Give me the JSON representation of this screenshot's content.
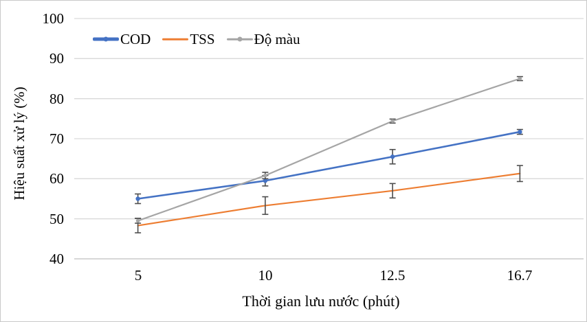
{
  "figure": {
    "background": "#ffffff",
    "border_color": "#c8c8c8"
  },
  "chart_data": {
    "type": "line",
    "title": "",
    "xlabel": "Thời gian lưu nước (phút)",
    "ylabel": "Hiệu suất xử lý (%)",
    "categories": [
      "5",
      "10",
      "12.5",
      "16.7"
    ],
    "ylim": [
      40,
      100
    ],
    "ytick_step": 10,
    "yticks": [
      "100",
      "90",
      "80",
      "70",
      "60",
      "50",
      "40"
    ],
    "grid": true,
    "legend_position": "top-inside-left",
    "gridline_color": "#d9d9d9",
    "axis_line_color": "#bfbfbf",
    "error_bar_color": "#4d4d4d",
    "text_color": "#000000",
    "series": [
      {
        "name": "COD",
        "color": "#4472C4",
        "line_width": 2.6,
        "marker": "circle",
        "marker_size": 3.2,
        "values": [
          55,
          59.5,
          65.5,
          71.7
        ],
        "errors": [
          1.2,
          1.3,
          1.8,
          0.6
        ]
      },
      {
        "name": "TSS",
        "color": "#ED7D31",
        "line_width": 2.2,
        "marker": "none",
        "marker_size": 0,
        "values": [
          48.3,
          53.3,
          57,
          61.3
        ],
        "errors": [
          1.8,
          2.2,
          1.8,
          2.0
        ]
      },
      {
        "name": "Độ màu",
        "color": "#A5A5A5",
        "line_width": 2.2,
        "marker": "circle",
        "marker_size": 2.8,
        "values": [
          49.5,
          60.8,
          74.4,
          85
        ],
        "errors": [
          0.6,
          0.8,
          0.5,
          0.5
        ]
      }
    ]
  }
}
